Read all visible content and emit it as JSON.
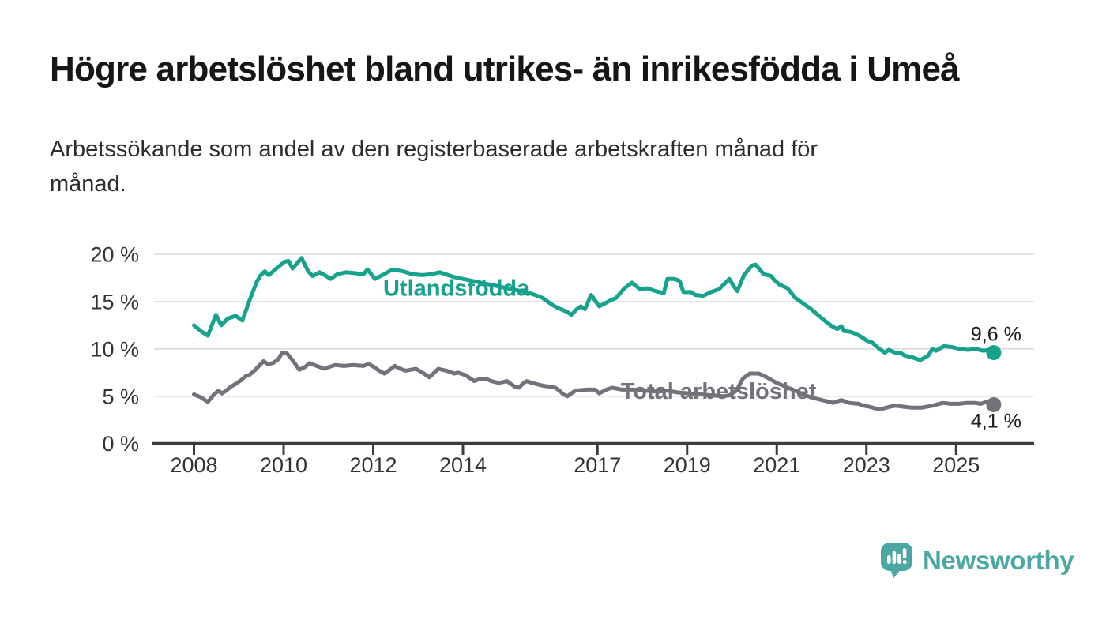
{
  "chart_data": {
    "type": "line",
    "title": "Högre arbetslöshet bland utrikes- än inrikesfödda i Umeå",
    "subtitle_lines": [
      "Arbetssökande som andel av den registerbaserade arbetskraften månad för",
      "månad."
    ],
    "unit": "%",
    "grid": "horizontal",
    "y_ticks": [
      0,
      5,
      10,
      15,
      20
    ],
    "y_tick_suffix": " %",
    "ylim": [
      0,
      20
    ],
    "x_ticks": [
      2008,
      2010,
      2012,
      2014,
      2017,
      2019,
      2021,
      2023,
      2025
    ],
    "xlim_years": [
      2007.07,
      2026.76
    ],
    "legend_position": "inline-labels",
    "series": [
      {
        "name": "Utlandsfödda",
        "color": "#16A28C",
        "label": {
          "text": "Utlandsfödda",
          "x": 2012.22,
          "y": 15.6
        },
        "end_dot": true,
        "end_label": "9,6 %",
        "end_value": 9.6,
        "end_label_side": "above",
        "points": [
          [
            2008.0,
            12.5
          ],
          [
            2008.15,
            11.9
          ],
          [
            2008.31,
            11.4
          ],
          [
            2008.49,
            13.6
          ],
          [
            2008.61,
            12.5
          ],
          [
            2008.75,
            13.2
          ],
          [
            2008.93,
            13.5
          ],
          [
            2009.08,
            13.0
          ],
          [
            2009.23,
            15.0
          ],
          [
            2009.4,
            17.1
          ],
          [
            2009.49,
            17.8
          ],
          [
            2009.58,
            18.2
          ],
          [
            2009.67,
            17.8
          ],
          [
            2009.84,
            18.5
          ],
          [
            2010.02,
            19.2
          ],
          [
            2010.11,
            19.3
          ],
          [
            2010.2,
            18.5
          ],
          [
            2010.4,
            19.6
          ],
          [
            2010.55,
            18.2
          ],
          [
            2010.65,
            17.7
          ],
          [
            2010.8,
            18.1
          ],
          [
            2010.95,
            17.7
          ],
          [
            2011.05,
            17.4
          ],
          [
            2011.2,
            17.9
          ],
          [
            2011.4,
            18.1
          ],
          [
            2011.6,
            18.0
          ],
          [
            2011.78,
            17.9
          ],
          [
            2011.87,
            18.4
          ],
          [
            2012.04,
            17.4
          ],
          [
            2012.2,
            17.8
          ],
          [
            2012.43,
            18.4
          ],
          [
            2012.66,
            18.2
          ],
          [
            2012.87,
            17.9
          ],
          [
            2013.1,
            17.8
          ],
          [
            2013.3,
            17.9
          ],
          [
            2013.48,
            18.1
          ],
          [
            2013.8,
            17.6
          ],
          [
            2014.1,
            17.3
          ],
          [
            2014.5,
            16.9
          ],
          [
            2014.9,
            16.5
          ],
          [
            2015.3,
            16.1
          ],
          [
            2015.55,
            15.8
          ],
          [
            2015.77,
            15.4
          ],
          [
            2015.89,
            15.0
          ],
          [
            2016.01,
            14.6
          ],
          [
            2016.13,
            14.3
          ],
          [
            2016.33,
            13.9
          ],
          [
            2016.42,
            13.6
          ],
          [
            2016.54,
            14.2
          ],
          [
            2016.63,
            14.5
          ],
          [
            2016.72,
            14.2
          ],
          [
            2016.86,
            15.7
          ],
          [
            2017.04,
            14.5
          ],
          [
            2017.24,
            15.0
          ],
          [
            2017.42,
            15.4
          ],
          [
            2017.6,
            16.4
          ],
          [
            2017.77,
            17.0
          ],
          [
            2017.95,
            16.3
          ],
          [
            2018.12,
            16.4
          ],
          [
            2018.3,
            16.1
          ],
          [
            2018.48,
            15.9
          ],
          [
            2018.56,
            17.4
          ],
          [
            2018.71,
            17.4
          ],
          [
            2018.83,
            17.2
          ],
          [
            2018.92,
            16.0
          ],
          [
            2019.09,
            16.0
          ],
          [
            2019.18,
            15.7
          ],
          [
            2019.36,
            15.6
          ],
          [
            2019.53,
            16.0
          ],
          [
            2019.71,
            16.3
          ],
          [
            2019.88,
            17.1
          ],
          [
            2019.94,
            17.4
          ],
          [
            2020.03,
            16.7
          ],
          [
            2020.12,
            16.1
          ],
          [
            2020.27,
            17.8
          ],
          [
            2020.44,
            18.8
          ],
          [
            2020.53,
            18.9
          ],
          [
            2020.62,
            18.4
          ],
          [
            2020.71,
            17.9
          ],
          [
            2020.88,
            17.7
          ],
          [
            2020.94,
            17.3
          ],
          [
            2021.06,
            16.8
          ],
          [
            2021.24,
            16.4
          ],
          [
            2021.41,
            15.4
          ],
          [
            2021.59,
            14.8
          ],
          [
            2021.77,
            14.2
          ],
          [
            2021.94,
            13.5
          ],
          [
            2022.12,
            12.8
          ],
          [
            2022.23,
            12.4
          ],
          [
            2022.35,
            12.1
          ],
          [
            2022.44,
            12.4
          ],
          [
            2022.5,
            11.9
          ],
          [
            2022.65,
            11.8
          ],
          [
            2022.76,
            11.6
          ],
          [
            2022.88,
            11.3
          ],
          [
            2023.0,
            10.9
          ],
          [
            2023.12,
            10.7
          ],
          [
            2023.29,
            10.0
          ],
          [
            2023.41,
            9.6
          ],
          [
            2023.5,
            9.9
          ],
          [
            2023.68,
            9.5
          ],
          [
            2023.76,
            9.6
          ],
          [
            2023.85,
            9.3
          ],
          [
            2024.03,
            9.1
          ],
          [
            2024.2,
            8.8
          ],
          [
            2024.38,
            9.3
          ],
          [
            2024.47,
            10.0
          ],
          [
            2024.55,
            9.8
          ],
          [
            2024.73,
            10.3
          ],
          [
            2024.91,
            10.2
          ],
          [
            2025.08,
            10.0
          ],
          [
            2025.26,
            9.9
          ],
          [
            2025.44,
            10.0
          ],
          [
            2025.61,
            9.8
          ],
          [
            2025.76,
            9.9
          ],
          [
            2025.84,
            9.6
          ]
        ]
      },
      {
        "name": "Total arbetslöshet",
        "color": "#75717A",
        "label": {
          "text": "Total arbetslöshet",
          "x": 2017.52,
          "y": 4.72
        },
        "end_dot": true,
        "end_label": "4,1 %",
        "end_value": 4.1,
        "end_label_side": "below",
        "points": [
          [
            2008.0,
            5.2
          ],
          [
            2008.15,
            4.9
          ],
          [
            2008.31,
            4.4
          ],
          [
            2008.45,
            5.2
          ],
          [
            2008.55,
            5.6
          ],
          [
            2008.62,
            5.3
          ],
          [
            2008.72,
            5.6
          ],
          [
            2008.82,
            6.0
          ],
          [
            2008.93,
            6.3
          ],
          [
            2009.05,
            6.7
          ],
          [
            2009.15,
            7.1
          ],
          [
            2009.25,
            7.3
          ],
          [
            2009.35,
            7.7
          ],
          [
            2009.45,
            8.2
          ],
          [
            2009.55,
            8.7
          ],
          [
            2009.65,
            8.4
          ],
          [
            2009.76,
            8.5
          ],
          [
            2009.88,
            8.9
          ],
          [
            2009.97,
            9.6
          ],
          [
            2010.08,
            9.5
          ],
          [
            2010.2,
            8.8
          ],
          [
            2010.35,
            7.8
          ],
          [
            2010.48,
            8.1
          ],
          [
            2010.58,
            8.5
          ],
          [
            2010.68,
            8.3
          ],
          [
            2010.8,
            8.1
          ],
          [
            2010.9,
            7.9
          ],
          [
            2011.02,
            8.1
          ],
          [
            2011.15,
            8.3
          ],
          [
            2011.35,
            8.2
          ],
          [
            2011.55,
            8.3
          ],
          [
            2011.78,
            8.2
          ],
          [
            2011.9,
            8.4
          ],
          [
            2012.01,
            8.1
          ],
          [
            2012.13,
            7.7
          ],
          [
            2012.25,
            7.4
          ],
          [
            2012.37,
            7.8
          ],
          [
            2012.48,
            8.2
          ],
          [
            2012.6,
            7.9
          ],
          [
            2012.72,
            7.7
          ],
          [
            2012.84,
            7.8
          ],
          [
            2012.95,
            7.9
          ],
          [
            2013.13,
            7.4
          ],
          [
            2013.25,
            7.0
          ],
          [
            2013.45,
            7.9
          ],
          [
            2013.63,
            7.7
          ],
          [
            2013.81,
            7.4
          ],
          [
            2013.89,
            7.5
          ],
          [
            2014.07,
            7.2
          ],
          [
            2014.25,
            6.6
          ],
          [
            2014.36,
            6.8
          ],
          [
            2014.54,
            6.8
          ],
          [
            2014.63,
            6.6
          ],
          [
            2014.8,
            6.4
          ],
          [
            2014.98,
            6.6
          ],
          [
            2015.07,
            6.3
          ],
          [
            2015.16,
            6.0
          ],
          [
            2015.25,
            5.9
          ],
          [
            2015.33,
            6.3
          ],
          [
            2015.42,
            6.6
          ],
          [
            2015.54,
            6.4
          ],
          [
            2015.63,
            6.3
          ],
          [
            2015.8,
            6.1
          ],
          [
            2015.98,
            6.0
          ],
          [
            2016.06,
            5.9
          ],
          [
            2016.15,
            5.6
          ],
          [
            2016.24,
            5.2
          ],
          [
            2016.33,
            5.0
          ],
          [
            2016.42,
            5.3
          ],
          [
            2016.51,
            5.6
          ],
          [
            2016.77,
            5.7
          ],
          [
            2016.95,
            5.7
          ],
          [
            2017.04,
            5.3
          ],
          [
            2017.2,
            5.7
          ],
          [
            2017.33,
            5.9
          ],
          [
            2017.55,
            5.7
          ],
          [
            2017.8,
            5.7
          ],
          [
            2018.05,
            5.6
          ],
          [
            2018.3,
            5.5
          ],
          [
            2018.55,
            5.6
          ],
          [
            2018.8,
            5.4
          ],
          [
            2019.05,
            5.3
          ],
          [
            2019.3,
            5.2
          ],
          [
            2019.55,
            5.1
          ],
          [
            2019.8,
            5.0
          ],
          [
            2019.95,
            5.1
          ],
          [
            2020.1,
            5.6
          ],
          [
            2020.25,
            6.9
          ],
          [
            2020.4,
            7.4
          ],
          [
            2020.6,
            7.4
          ],
          [
            2020.78,
            7.0
          ],
          [
            2021.0,
            6.4
          ],
          [
            2021.25,
            5.9
          ],
          [
            2021.5,
            5.4
          ],
          [
            2021.75,
            4.9
          ],
          [
            2022.0,
            4.6
          ],
          [
            2022.26,
            4.3
          ],
          [
            2022.44,
            4.6
          ],
          [
            2022.61,
            4.3
          ],
          [
            2022.82,
            4.2
          ],
          [
            2022.94,
            4.0
          ],
          [
            2023.06,
            3.9
          ],
          [
            2023.29,
            3.6
          ],
          [
            2023.53,
            3.9
          ],
          [
            2023.65,
            4.0
          ],
          [
            2023.82,
            3.9
          ],
          [
            2024.0,
            3.8
          ],
          [
            2024.23,
            3.8
          ],
          [
            2024.47,
            4.0
          ],
          [
            2024.7,
            4.3
          ],
          [
            2024.88,
            4.2
          ],
          [
            2025.06,
            4.2
          ],
          [
            2025.25,
            4.3
          ],
          [
            2025.41,
            4.3
          ],
          [
            2025.55,
            4.2
          ],
          [
            2025.67,
            4.4
          ],
          [
            2025.76,
            4.2
          ],
          [
            2025.84,
            4.1
          ]
        ]
      }
    ]
  },
  "footer": {
    "brand": "Newsworthy",
    "logo_icon": "bar-chart-speech-bubble-icon"
  },
  "colors": {
    "accent_teal": "#16A28C",
    "line_gray": "#75717A",
    "logo_teal": "#4BA7A2",
    "axis": "#3C3C3C",
    "grid": "#DCDCDC",
    "text_dark": "#1A1A1A",
    "text_medium": "#333333"
  }
}
